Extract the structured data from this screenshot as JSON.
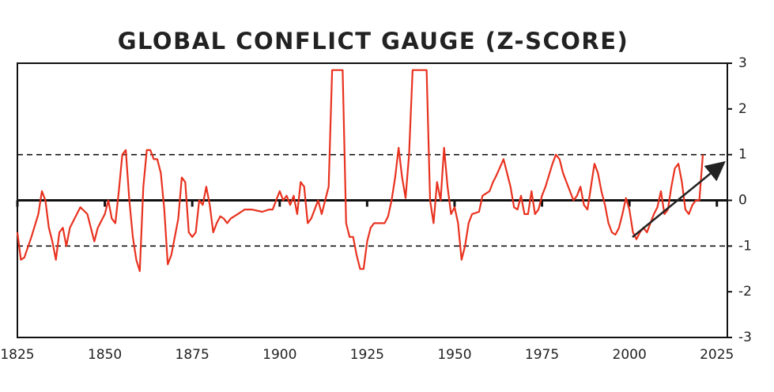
{
  "chart_data": {
    "type": "line",
    "title": "GLOBAL CONFLICT GAUGE (Z-SCORE)",
    "x": [
      1825,
      1826,
      1827,
      1829,
      1831,
      1832,
      1833,
      1834,
      1835,
      1836,
      1837,
      1838,
      1839,
      1840,
      1842,
      1843,
      1845,
      1846,
      1847,
      1848,
      1850,
      1851,
      1852,
      1853,
      1854,
      1855,
      1856,
      1857,
      1858,
      1859,
      1860,
      1861,
      1862,
      1863,
      1864,
      1865,
      1866,
      1867,
      1868,
      1869,
      1870,
      1871,
      1872,
      1873,
      1874,
      1875,
      1876,
      1877,
      1878,
      1879,
      1880,
      1881,
      1882,
      1883,
      1884,
      1885,
      1886,
      1887,
      1888,
      1890,
      1892,
      1895,
      1897,
      1898,
      1899,
      1900,
      1901,
      1902,
      1903,
      1904,
      1905,
      1906,
      1907,
      1908,
      1909,
      1910,
      1911,
      1912,
      1913,
      1914,
      1915,
      1918,
      1919,
      1920,
      1921,
      1922,
      1923,
      1924,
      1925,
      1926,
      1927,
      1930,
      1931,
      1932,
      1933,
      1934,
      1935,
      1936,
      1937,
      1938,
      1942,
      1943,
      1944,
      1945,
      1946,
      1947,
      1948,
      1949,
      1950,
      1951,
      1952,
      1953,
      1954,
      1955,
      1957,
      1958,
      1960,
      1961,
      1962,
      1964,
      1965,
      1966,
      1967,
      1968,
      1969,
      1970,
      1971,
      1972,
      1973,
      1974,
      1975,
      1976,
      1978,
      1979,
      1980,
      1981,
      1982,
      1983,
      1984,
      1985,
      1986,
      1987,
      1988,
      1989,
      1990,
      1991,
      1992,
      1993,
      1994,
      1995,
      1996,
      1997,
      1998,
      1999,
      2000,
      2001,
      2002,
      2003,
      2004,
      2005,
      2006,
      2007,
      2008,
      2009,
      2010,
      2011,
      2012,
      2013,
      2014,
      2015,
      2016,
      2017,
      2018,
      2019,
      2020,
      2021
    ],
    "values": [
      -0.7,
      -1.3,
      -1.25,
      -0.8,
      -0.3,
      0.2,
      0.0,
      -0.6,
      -0.9,
      -1.3,
      -0.7,
      -0.6,
      -1.0,
      -0.6,
      -0.3,
      -0.15,
      -0.3,
      -0.6,
      -0.9,
      -0.6,
      -0.3,
      0.0,
      -0.4,
      -0.5,
      0.2,
      1.0,
      1.1,
      0.0,
      -0.8,
      -1.3,
      -1.55,
      0.3,
      1.1,
      1.1,
      0.9,
      0.9,
      0.6,
      -0.2,
      -1.4,
      -1.2,
      -0.8,
      -0.4,
      0.5,
      0.4,
      -0.7,
      -0.8,
      -0.7,
      0.0,
      -0.1,
      0.3,
      -0.1,
      -0.7,
      -0.5,
      -0.35,
      -0.4,
      -0.5,
      -0.4,
      -0.35,
      -0.3,
      -0.2,
      -0.2,
      -0.25,
      -0.2,
      -0.2,
      0.0,
      0.2,
      0.0,
      0.1,
      -0.1,
      0.1,
      -0.3,
      0.4,
      0.3,
      -0.5,
      -0.4,
      -0.2,
      0.0,
      -0.3,
      0.0,
      0.3,
      2.85,
      2.85,
      -0.5,
      -0.8,
      -0.8,
      -1.2,
      -1.5,
      -1.5,
      -0.9,
      -0.6,
      -0.5,
      -0.5,
      -0.35,
      0.0,
      0.5,
      1.15,
      0.5,
      0.05,
      1.0,
      2.85,
      2.85,
      0.0,
      -0.5,
      0.4,
      0.0,
      1.15,
      0.3,
      -0.3,
      -0.15,
      -0.5,
      -1.3,
      -1.0,
      -0.5,
      -0.3,
      -0.25,
      0.1,
      0.2,
      0.4,
      0.55,
      0.9,
      0.6,
      0.3,
      -0.15,
      -0.2,
      0.1,
      -0.3,
      -0.3,
      0.2,
      -0.3,
      -0.2,
      0.1,
      0.3,
      0.8,
      1.0,
      0.9,
      0.6,
      0.4,
      0.2,
      0.0,
      0.1,
      0.3,
      -0.1,
      -0.2,
      0.3,
      0.8,
      0.6,
      0.2,
      -0.1,
      -0.5,
      -0.7,
      -0.75,
      -0.6,
      -0.3,
      0.05,
      -0.2,
      -0.7,
      -0.85,
      -0.7,
      -0.6,
      -0.7,
      -0.5,
      -0.3,
      -0.15,
      0.2,
      -0.3,
      -0.2,
      0.3,
      0.7,
      0.8,
      0.4,
      -0.2,
      -0.3,
      -0.1,
      0.0,
      0.0,
      1.0
    ],
    "color": "#e8321f",
    "xlim": [
      1825,
      2028
    ],
    "xticks": [
      1825,
      1850,
      1875,
      1900,
      1925,
      1950,
      1975,
      2000,
      2025
    ],
    "ylim": [
      -3,
      3
    ],
    "yticks": [
      3,
      2,
      1,
      0,
      -1,
      -2,
      -3
    ],
    "y_axis_side": "right",
    "hlines": [
      {
        "y": 0,
        "style": "solid"
      },
      {
        "y": 1,
        "style": "dashed"
      },
      {
        "y": -1,
        "style": "dashed"
      }
    ]
  }
}
